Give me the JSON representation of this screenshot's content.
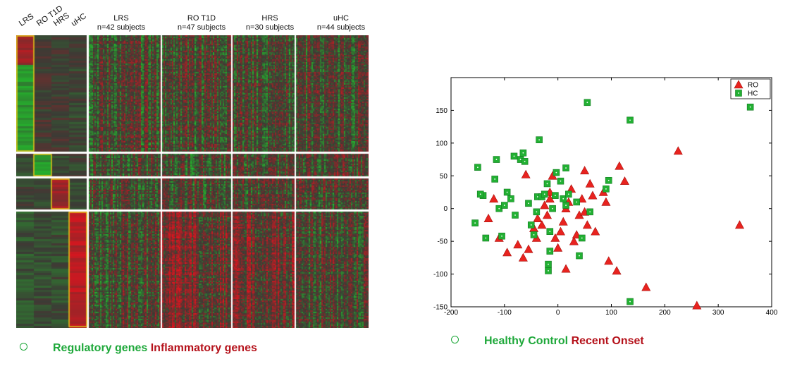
{
  "heatmap": {
    "column_labels": [
      "LRS",
      "RO T1D",
      "HRS",
      "uHC"
    ],
    "groups": [
      {
        "name": "LRS",
        "subtitle": "n=42 subjects"
      },
      {
        "name": "RO T1D",
        "subtitle": "n=47 subjects"
      },
      {
        "name": "HRS",
        "subtitle": "n=30 subjects"
      },
      {
        "name": "uHC",
        "subtitle": "n=44 subjects"
      }
    ],
    "colors": {
      "up": "#e0141e",
      "down": "#1fd22a",
      "neutral": "#3b3b35",
      "box": "#e6c619",
      "separator": "#ffffff"
    }
  },
  "captions": {
    "left": {
      "green": "Regulatory genes",
      "red": "Inflammatory genes"
    },
    "right": {
      "green": "Healthy Control",
      "red": "Recent Onset"
    }
  },
  "chart_data": {
    "type": "scatter",
    "title": "",
    "xlabel": "",
    "ylabel": "",
    "xlim": [
      -200,
      400
    ],
    "ylim": [
      -150,
      200
    ],
    "xticks": [
      -200,
      -100,
      0,
      100,
      200,
      300,
      400
    ],
    "yticks": [
      -150,
      -100,
      -50,
      0,
      50,
      100,
      150
    ],
    "grid": false,
    "legend_position": "top-right",
    "series": [
      {
        "name": "RO",
        "marker": "triangle",
        "color": "#e8231f",
        "points": [
          [
            -60,
            52
          ],
          [
            -110,
            -45
          ],
          [
            -95,
            -67
          ],
          [
            -75,
            -55
          ],
          [
            -65,
            -75
          ],
          [
            -55,
            -62
          ],
          [
            -45,
            -30
          ],
          [
            -40,
            -45
          ],
          [
            -38,
            -15
          ],
          [
            -30,
            -25
          ],
          [
            -25,
            5
          ],
          [
            -20,
            -10
          ],
          [
            -15,
            15
          ],
          [
            -15,
            25
          ],
          [
            -10,
            50
          ],
          [
            -5,
            -45
          ],
          [
            0,
            -60
          ],
          [
            5,
            -35
          ],
          [
            10,
            -20
          ],
          [
            15,
            0
          ],
          [
            15,
            -92
          ],
          [
            20,
            10
          ],
          [
            25,
            30
          ],
          [
            30,
            -50
          ],
          [
            35,
            -40
          ],
          [
            40,
            -10
          ],
          [
            45,
            15
          ],
          [
            50,
            -5
          ],
          [
            55,
            -25
          ],
          [
            60,
            38
          ],
          [
            65,
            20
          ],
          [
            70,
            -35
          ],
          [
            50,
            58
          ],
          [
            85,
            25
          ],
          [
            90,
            10
          ],
          [
            95,
            -80
          ],
          [
            110,
            -95
          ],
          [
            115,
            65
          ],
          [
            125,
            42
          ],
          [
            165,
            -120
          ],
          [
            225,
            88
          ],
          [
            260,
            -148
          ],
          [
            340,
            -25
          ],
          [
            -130,
            -15
          ],
          [
            -120,
            15
          ]
        ]
      },
      {
        "name": "HC",
        "marker": "square",
        "color": "#22b033",
        "points": [
          [
            -150,
            63
          ],
          [
            -140,
            20
          ],
          [
            -135,
            -45
          ],
          [
            -118,
            45
          ],
          [
            -115,
            75
          ],
          [
            -110,
            0
          ],
          [
            -100,
            5
          ],
          [
            -95,
            25
          ],
          [
            -88,
            15
          ],
          [
            -82,
            80
          ],
          [
            -80,
            -10
          ],
          [
            -70,
            75
          ],
          [
            -65,
            85
          ],
          [
            -62,
            72
          ],
          [
            -55,
            8
          ],
          [
            -50,
            -25
          ],
          [
            -45,
            -40
          ],
          [
            -40,
            -5
          ],
          [
            -38,
            18
          ],
          [
            -35,
            105
          ],
          [
            -30,
            18
          ],
          [
            -25,
            22
          ],
          [
            -20,
            38
          ],
          [
            -18,
            -85
          ],
          [
            -18,
            -95
          ],
          [
            -15,
            -65
          ],
          [
            -15,
            -35
          ],
          [
            -10,
            0
          ],
          [
            -5,
            20
          ],
          [
            -3,
            55
          ],
          [
            5,
            42
          ],
          [
            10,
            15
          ],
          [
            15,
            5
          ],
          [
            15,
            62
          ],
          [
            20,
            22
          ],
          [
            35,
            10
          ],
          [
            40,
            -72
          ],
          [
            45,
            -45
          ],
          [
            55,
            162
          ],
          [
            60,
            -5
          ],
          [
            90,
            30
          ],
          [
            95,
            43
          ],
          [
            135,
            135
          ],
          [
            135,
            -142
          ],
          [
            360,
            155
          ],
          [
            -155,
            -22
          ],
          [
            -145,
            22
          ],
          [
            -105,
            -42
          ]
        ]
      }
    ]
  }
}
